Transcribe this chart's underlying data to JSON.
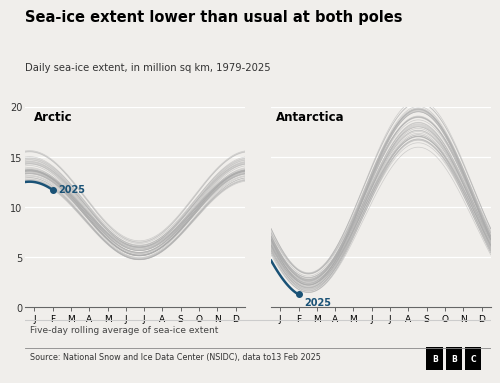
{
  "title": "Sea-ice extent lower than usual at both poles",
  "subtitle": "Daily sea-ice extent, in million sq km, 1979-2025",
  "label_arctic": "Arctic",
  "label_antarctica": "Antarctica",
  "footer_note": "Five-day rolling average of sea-ice extent",
  "footer_source": "Source: National Snow and Ice Data Center (NSIDC), data to13 Feb 2025",
  "months": [
    "J",
    "F",
    "M",
    "A",
    "M",
    "J",
    "J",
    "A",
    "S",
    "O",
    "N",
    "D"
  ],
  "ylim": [
    0,
    20
  ],
  "yticks": [
    0,
    5,
    10,
    15,
    20
  ],
  "color_2025": "#1a5276",
  "color_historical": "#aaaaaa",
  "color_historical_alpha": 0.5,
  "background_color": "#f0eeeb",
  "n_historical_years": 44
}
